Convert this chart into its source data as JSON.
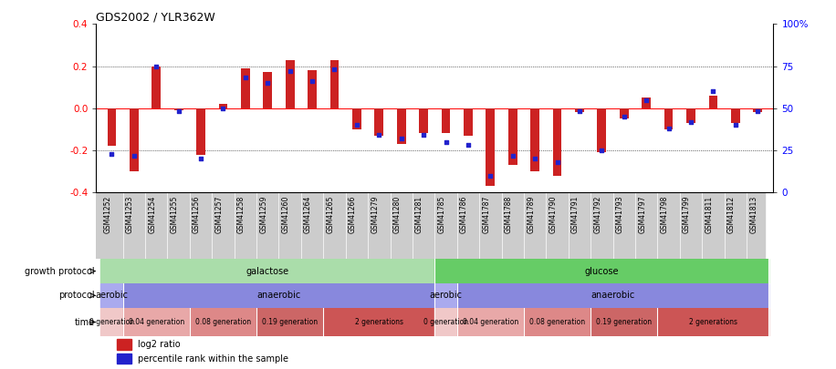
{
  "title": "GDS2002 / YLR362W",
  "samples": [
    "GSM41252",
    "GSM41253",
    "GSM41254",
    "GSM41255",
    "GSM41256",
    "GSM41257",
    "GSM41258",
    "GSM41259",
    "GSM41260",
    "GSM41264",
    "GSM41265",
    "GSM41266",
    "GSM41279",
    "GSM41280",
    "GSM41281",
    "GSM41785",
    "GSM41786",
    "GSM41787",
    "GSM41788",
    "GSM41789",
    "GSM41790",
    "GSM41791",
    "GSM41792",
    "GSM41793",
    "GSM41797",
    "GSM41798",
    "GSM41799",
    "GSM41811",
    "GSM41812",
    "GSM41813"
  ],
  "log2_ratio": [
    -0.18,
    -0.3,
    0.2,
    -0.01,
    -0.22,
    0.02,
    0.19,
    0.17,
    0.23,
    0.18,
    0.23,
    -0.1,
    -0.13,
    -0.17,
    -0.12,
    -0.12,
    -0.13,
    -0.37,
    -0.27,
    -0.3,
    -0.32,
    -0.02,
    -0.21,
    -0.05,
    0.05,
    -0.1,
    -0.07,
    0.06,
    -0.07,
    -0.02
  ],
  "percentile": [
    23,
    22,
    75,
    48,
    20,
    50,
    68,
    65,
    72,
    66,
    73,
    40,
    34,
    32,
    34,
    30,
    28,
    10,
    22,
    20,
    18,
    48,
    25,
    45,
    55,
    38,
    42,
    60,
    40,
    48
  ],
  "bar_color": "#cc2222",
  "dot_color": "#2222cc",
  "ylim_left": [
    -0.4,
    0.4
  ],
  "ylim_right": [
    0,
    100
  ],
  "yticks_left": [
    -0.4,
    -0.2,
    0.0,
    0.2,
    0.4
  ],
  "yticks_right": [
    0,
    25,
    50,
    75,
    100
  ],
  "ytick_labels_right": [
    "0",
    "25",
    "50",
    "75",
    "100%"
  ],
  "hlines": [
    0.2,
    0.0,
    -0.2
  ],
  "growth_protocol_row": {
    "label": "growth protocol",
    "groups": [
      {
        "text": "galactose",
        "start": 0,
        "end": 14,
        "color": "#aaddaa"
      },
      {
        "text": "glucose",
        "start": 15,
        "end": 29,
        "color": "#66cc66"
      }
    ]
  },
  "protocol_row": {
    "label": "protocol",
    "groups": [
      {
        "text": "aerobic",
        "start": 0,
        "end": 0,
        "color": "#aaaaee"
      },
      {
        "text": "anaerobic",
        "start": 1,
        "end": 14,
        "color": "#8888dd"
      },
      {
        "text": "aerobic",
        "start": 15,
        "end": 15,
        "color": "#aaaaee"
      },
      {
        "text": "anaerobic",
        "start": 16,
        "end": 29,
        "color": "#8888dd"
      }
    ]
  },
  "time_row": {
    "label": "time",
    "groups": [
      {
        "text": "0 generation",
        "start": 0,
        "end": 0,
        "color": "#f0c8c8"
      },
      {
        "text": "0.04 generation",
        "start": 1,
        "end": 3,
        "color": "#e8a8a8"
      },
      {
        "text": "0.08 generation",
        "start": 4,
        "end": 6,
        "color": "#dd8888"
      },
      {
        "text": "0.19 generation",
        "start": 7,
        "end": 9,
        "color": "#cc6666"
      },
      {
        "text": "2 generations",
        "start": 10,
        "end": 14,
        "color": "#cc5555"
      },
      {
        "text": "0 generation",
        "start": 15,
        "end": 15,
        "color": "#f0c8c8"
      },
      {
        "text": "0.04 generation",
        "start": 16,
        "end": 18,
        "color": "#e8a8a8"
      },
      {
        "text": "0.08 generation",
        "start": 19,
        "end": 21,
        "color": "#dd8888"
      },
      {
        "text": "0.19 generation",
        "start": 22,
        "end": 24,
        "color": "#cc6666"
      },
      {
        "text": "2 generations",
        "start": 25,
        "end": 29,
        "color": "#cc5555"
      }
    ]
  },
  "legend_items": [
    {
      "color": "#cc2222",
      "label": "log2 ratio"
    },
    {
      "color": "#2222cc",
      "label": "percentile rank within the sample"
    }
  ],
  "xtick_bg": "#dddddd",
  "figsize": [
    9.16,
    4.05
  ],
  "dpi": 100
}
